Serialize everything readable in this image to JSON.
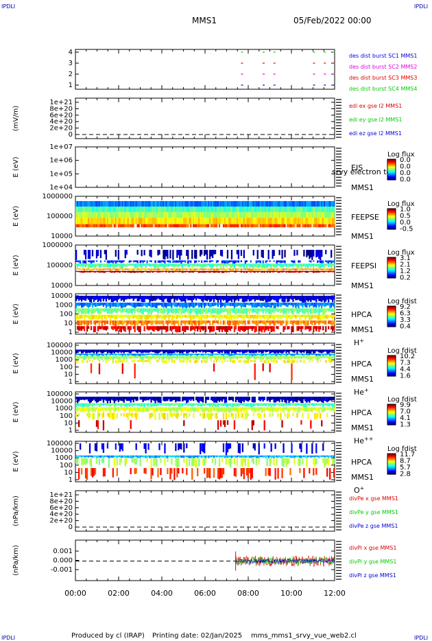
{
  "header": {
    "corner_left_top": "IPDLI",
    "corner_right_top": "IPDLI",
    "corner_left_bottom": "IPDLI",
    "corner_right_bottom": "IPDLI",
    "title": "MMS1",
    "date": "05/Feb/2022 00:00"
  },
  "footer": {
    "produced_by": "Produced by cl (IRAP)",
    "printing_date": "Printing date: 02/Jan/2025",
    "filename": "mms_mms1_srvy_vue_web2.cl"
  },
  "colors": {
    "blue": "#0000dd",
    "red": "#dd0000",
    "green": "#00cc00",
    "magenta": "#dd00dd"
  },
  "chart_data": {
    "type": "multi-panel time series with spectrograms",
    "x_axis": {
      "range": [
        "00:00",
        "12:00"
      ],
      "ticks": [
        "00:00",
        "02:00",
        "04:00",
        "06:00",
        "08:00",
        "10:00",
        "12:00"
      ]
    },
    "panels": [
      {
        "id": "availability",
        "type": "scatter",
        "yticks": [
          "4",
          "3",
          "2",
          "1"
        ],
        "legend": [
          {
            "text": "des dist burst SC1 MMS1",
            "color": "#0000dd"
          },
          {
            "text": "des dist burst SC2 MMS2",
            "color": "#dd00dd"
          },
          {
            "text": "des dist burst SC3 MMS3",
            "color": "#dd0000"
          },
          {
            "text": "des dist burst SC4 MMS4",
            "color": "#00cc00"
          }
        ],
        "series": [
          {
            "y": 4,
            "color": "#00cc00",
            "x": [
              "07:40",
              "08:40",
              "09:10",
              "11:00",
              "11:30",
              "11:55"
            ]
          },
          {
            "y": 3,
            "color": "#dd0000",
            "x": [
              "07:40",
              "08:40",
              "09:10",
              "11:00",
              "11:30",
              "11:55"
            ]
          },
          {
            "y": 2,
            "color": "#dd00dd",
            "x": [
              "07:40",
              "08:40",
              "09:10",
              "11:00",
              "11:30",
              "11:55"
            ]
          },
          {
            "y": 1,
            "color": "#0000dd",
            "x": [
              "07:40",
              "08:40",
              "09:10",
              "11:00",
              "11:30",
              "11:55"
            ]
          }
        ]
      },
      {
        "id": "edi",
        "type": "line",
        "ylabel": "(mV/m)",
        "yticks": [
          "1e+21",
          "8e+20",
          "6e+20",
          "4e+20",
          "2e+20",
          "0"
        ],
        "legend": [
          {
            "text": "edi ex gse l2 MMS1",
            "color": "#dd0000"
          },
          {
            "text": "edi ey gse l2 MMS1",
            "color": "#00cc00"
          },
          {
            "text": "edi ez gse l2 MMS1",
            "color": "#0000dd"
          }
        ]
      },
      {
        "id": "eis",
        "type": "heatmap",
        "ylabel": "E (eV)",
        "yticks": [
          "1e+07",
          "1e+06",
          "1e+05",
          "1e+04"
        ],
        "right_labels": [
          "EIS",
          "MMS1"
        ],
        "overlay_text": "srvy electron to",
        "colorbar": {
          "title": "Log flux",
          "ticks": [
            "0.0",
            "0.0",
            "0.0",
            "0.0"
          ]
        }
      },
      {
        "id": "feepse",
        "type": "heatmap",
        "ylabel": "E (eV)",
        "yticks": [
          "1000000",
          "100000",
          "10000"
        ],
        "right_labels": [
          "FEEPSE",
          "MMS1"
        ],
        "colorbar": {
          "title": "Log flux",
          "ticks": [
            "1.0",
            "0.5",
            "0.0",
            "-0.5"
          ]
        }
      },
      {
        "id": "feepsi",
        "type": "heatmap",
        "ylabel": "E (eV)",
        "yticks": [
          "1000000",
          "100000",
          "10000"
        ],
        "right_labels": [
          "FEEPSI",
          "MMS1"
        ],
        "colorbar": {
          "title": "Log flux",
          "ticks": [
            "3.1",
            "2.1",
            "1.2",
            "0.2"
          ]
        }
      },
      {
        "id": "hpca_h",
        "type": "heatmap",
        "ylabel": "E (eV)",
        "yticks": [
          "10000",
          "1000",
          "100",
          "10",
          "1"
        ],
        "right_labels": [
          "HPCA",
          "MMS1"
        ],
        "species": "H",
        "species_sup": "+",
        "colorbar": {
          "title": "Log fdist",
          "ticks": [
            "9.2",
            "6.3",
            "3.3",
            "0.4"
          ]
        }
      },
      {
        "id": "hpca_he1",
        "type": "heatmap",
        "ylabel": "E (eV)",
        "yticks": [
          "100000",
          "10000",
          "1000",
          "100",
          "10",
          "1"
        ],
        "right_labels": [
          "HPCA",
          "MMS1"
        ],
        "species": "He",
        "species_sup": "+",
        "colorbar": {
          "title": "Log fdist",
          "ticks": [
            "10.2",
            "7.3",
            "4.4",
            "1.6"
          ]
        }
      },
      {
        "id": "hpca_he2",
        "type": "heatmap",
        "ylabel": "E (eV)",
        "yticks": [
          "100000",
          "10000",
          "1000",
          "100",
          "10",
          "1"
        ],
        "right_labels": [
          "HPCA",
          "MMS1"
        ],
        "species": "He",
        "species_sup": "++",
        "colorbar": {
          "title": "Log fdist",
          "ticks": [
            "9.9",
            "7.0",
            "4.1",
            "1.3"
          ]
        }
      },
      {
        "id": "hpca_o",
        "type": "heatmap",
        "ylabel": "E (eV)",
        "yticks": [
          "100000",
          "10000",
          "1000",
          "100",
          "10",
          "1"
        ],
        "right_labels": [
          "HPCA",
          "MMS1"
        ],
        "species": "O",
        "species_sup": "+",
        "colorbar": {
          "title": "Log fdist",
          "ticks": [
            "11.7",
            "8.7",
            "5.7",
            "2.8"
          ]
        }
      },
      {
        "id": "divpe",
        "type": "line",
        "ylabel": "(nPa/km)",
        "yticks": [
          "1e+21",
          "8e+20",
          "6e+20",
          "4e+20",
          "2e+20",
          "0"
        ],
        "legend": [
          {
            "text": "divPe x gse MMS1",
            "color": "#dd0000"
          },
          {
            "text": "divPe y gse MMS1",
            "color": "#00cc00"
          },
          {
            "text": "divPe z gse MMS1",
            "color": "#0000dd"
          }
        ]
      },
      {
        "id": "divpi",
        "type": "line",
        "ylabel": "(nPa/km)",
        "yticks": [
          "0.001",
          "0.000",
          "-0.001"
        ],
        "legend": [
          {
            "text": "divPi x gse MMS1",
            "color": "#dd0000"
          },
          {
            "text": "divPi y gse MMS1",
            "color": "#00cc00"
          },
          {
            "text": "divPi z gse MMS1",
            "color": "#0000dd"
          }
        ],
        "data_start": "07:25",
        "data_end": "12:00"
      }
    ]
  }
}
